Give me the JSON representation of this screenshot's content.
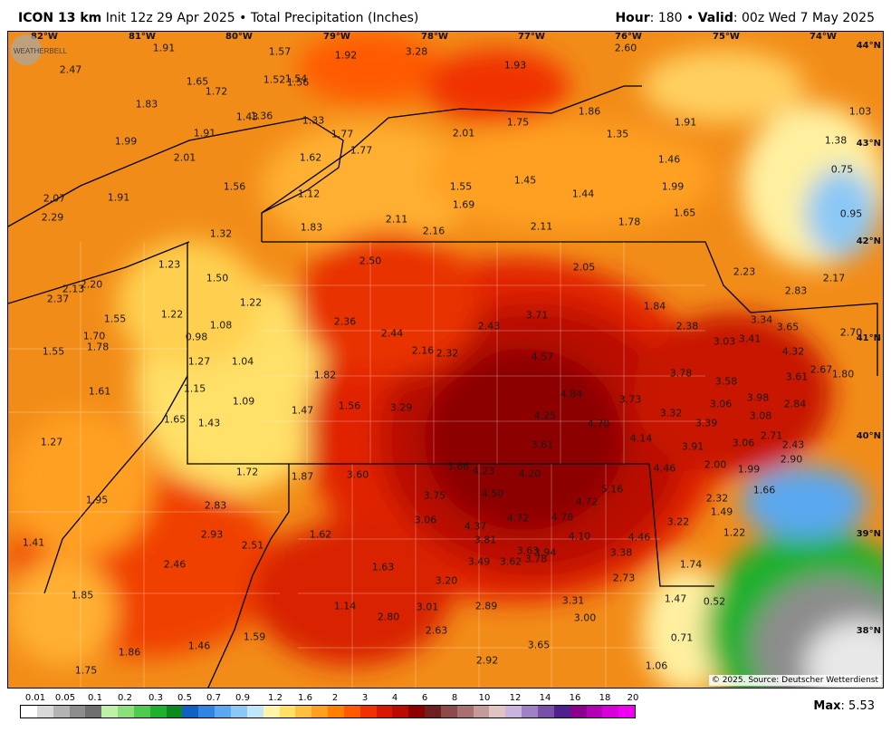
{
  "header": {
    "model": "ICON 13 km",
    "init": "Init 12z 29 Apr 2025",
    "bullet": "•",
    "product": "Total Precipitation (Inches)",
    "hour_label": "Hour",
    "hour_value": ": 180",
    "valid_label": "Valid",
    "valid_value": ": 00z Wed 7 May 2025"
  },
  "map": {
    "credit": "© 2025. Source: Deutscher Wetterdienst",
    "logo_text": "WEATHERBELL",
    "longitudes": [
      "82°W",
      "81°W",
      "80°W",
      "79°W",
      "78°W",
      "77°W",
      "76°W",
      "75°W",
      "74°W"
    ],
    "latitudes": [
      "44°N",
      "43°N",
      "42°N",
      "41°N",
      "40°N",
      "39°N",
      "38°N"
    ],
    "values": [
      "1.91",
      "1.57",
      "1.92",
      "3.28",
      "2.60",
      "2.47",
      "1.93",
      "1.65",
      "1.52",
      "1.54",
      "1.56",
      "1.72",
      "1.83",
      "1.43",
      "1.36",
      "1.33",
      "1.75",
      "1.86",
      "1.91",
      "1.03",
      "1.99",
      "1.91",
      "1.77",
      "2.01",
      "1.35",
      "1.38",
      "2.01",
      "1.62",
      "1.77",
      "1.46",
      "0.75",
      "1.45",
      "1.56",
      "1.55",
      "1.44",
      "1.99",
      "2.07",
      "1.91",
      "1.12",
      "1.69",
      "1.65",
      "0.95",
      "2.29",
      "1.83",
      "2.11",
      "2.16",
      "2.11",
      "1.78",
      "1.32",
      "1.23",
      "2.50",
      "2.05",
      "2.23",
      "2.17",
      "2.13",
      "2.20",
      "1.50",
      "2.83",
      "2.37",
      "1.22",
      "1.84",
      "1.55",
      "1.22",
      "2.36",
      "3.71",
      "3.34",
      "3.65",
      "1.70",
      "1.08",
      "2.44",
      "2.43",
      "2.38",
      "3.03",
      "3.41",
      "2.70",
      "1.78",
      "0.98",
      "2.16",
      "2.32",
      "4.32",
      "1.55",
      "1.27",
      "1.04",
      "4.57",
      "3.61",
      "2.67",
      "1.80",
      "1.82",
      "3.78",
      "3.58",
      "1.61",
      "1.15",
      "1.09",
      "4.84",
      "3.73",
      "3.98",
      "1.47",
      "1.56",
      "3.29",
      "3.06",
      "2.84",
      "1.65",
      "1.43",
      "4.25",
      "4.70",
      "3.32",
      "3.39",
      "3.08",
      "2.71",
      "4.14",
      "1.27",
      "3.61",
      "3.91",
      "3.06",
      "2.43",
      "2.90",
      "2.00",
      "1.72",
      "1.87",
      "3.60",
      "3.66",
      "4.23",
      "4.20",
      "4.46",
      "1.99",
      "5.16",
      "1.66",
      "1.95",
      "3.75",
      "4.50",
      "4.72",
      "2.32",
      "2.83",
      "3.06",
      "4.72",
      "4.78",
      "1.49",
      "3.22",
      "2.93",
      "4.37",
      "1.62",
      "4.10",
      "1.22",
      "1.41",
      "2.51",
      "3.81",
      "3.63",
      "3.94",
      "4.46",
      "3.38",
      "3.49",
      "3.62",
      "3.78",
      "2.46",
      "1.63",
      "1.74",
      "2.73",
      "3.20",
      "1.85",
      "3.31",
      "1.47",
      "0.52",
      "1.14",
      "3.01",
      "2.89",
      "2.80",
      "3.00",
      "2.63",
      "1.59",
      "0.71",
      "1.46",
      "3.65",
      "1.86",
      "2.92",
      "1.75",
      "1.06"
    ]
  },
  "legend": {
    "ticks": [
      "0.01",
      "0.05",
      "0.1",
      "0.2",
      "0.3",
      "0.5",
      "0.7",
      "0.9",
      "1.2",
      "1.6",
      "2",
      "3",
      "4",
      "6",
      "8",
      "10",
      "12",
      "14",
      "16",
      "18",
      "20"
    ],
    "colors": [
      "#ffffff",
      "#d9d9d9",
      "#b3b3b3",
      "#8c8c8c",
      "#6e6e6e",
      "#bdf0a8",
      "#8be07a",
      "#4fcc4f",
      "#1fb02f",
      "#0b8a1f",
      "#1360c4",
      "#2f86e0",
      "#5aa8f0",
      "#8cc8f5",
      "#c0e6fa",
      "#fff4a8",
      "#ffe066",
      "#ffc040",
      "#ffa020",
      "#ff8000",
      "#ff5a00",
      "#f03000",
      "#d81800",
      "#b80c00",
      "#8c0000",
      "#6e2020",
      "#8c4a4a",
      "#a87070",
      "#c49a9a",
      "#e0c4c4",
      "#c8b4dc",
      "#a080c4",
      "#7850a8",
      "#50208c",
      "#8c0090",
      "#b400b4",
      "#d800d8",
      "#f000f0"
    ],
    "max_label": "Max",
    "max_value": ": 5.53"
  }
}
